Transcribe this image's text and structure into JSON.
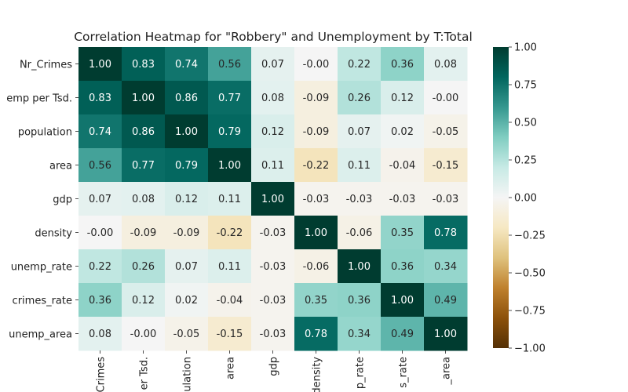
{
  "chart_data": {
    "type": "heatmap",
    "title": "Correlation Heatmap for \"Robbery\" and Unemployment by T:Total",
    "row_labels": [
      "Nr_Crimes",
      "emp per Tsd.",
      "population",
      "area",
      "gdp",
      "density",
      "unemp_rate",
      "crimes_rate",
      "unemp_area"
    ],
    "column_labels": [
      "Crimes",
      "er Tsd.",
      "ulation",
      "area",
      "gdp",
      "density",
      "p_rate",
      "s_rate",
      "_area"
    ],
    "values": [
      [
        1.0,
        0.83,
        0.74,
        0.56,
        0.07,
        -0.0,
        0.22,
        0.36,
        0.08
      ],
      [
        0.83,
        1.0,
        0.86,
        0.77,
        0.08,
        -0.09,
        0.26,
        0.12,
        -0.0
      ],
      [
        0.74,
        0.86,
        1.0,
        0.79,
        0.12,
        -0.09,
        0.07,
        0.02,
        -0.05
      ],
      [
        0.56,
        0.77,
        0.79,
        1.0,
        0.11,
        -0.22,
        0.11,
        -0.04,
        -0.15
      ],
      [
        0.07,
        0.08,
        0.12,
        0.11,
        1.0,
        -0.03,
        -0.03,
        -0.03,
        -0.03
      ],
      [
        -0.0,
        -0.09,
        -0.09,
        -0.22,
        -0.03,
        1.0,
        -0.06,
        0.35,
        0.78
      ],
      [
        0.22,
        0.26,
        0.07,
        0.11,
        -0.03,
        -0.06,
        1.0,
        0.36,
        0.34
      ],
      [
        0.36,
        0.12,
        0.02,
        -0.04,
        -0.03,
        0.35,
        0.36,
        1.0,
        0.49
      ],
      [
        0.08,
        -0.0,
        -0.05,
        -0.15,
        -0.03,
        0.78,
        0.34,
        0.49,
        1.0
      ]
    ],
    "value_format": "2 decimals",
    "colormap": "BrBG",
    "colorbar": {
      "range": [
        -1.0,
        1.0
      ],
      "ticks": [
        "1.00",
        "0.75",
        "0.50",
        "0.25",
        "0.00",
        "−0.25",
        "−0.50",
        "−0.75",
        "−1.00"
      ]
    }
  }
}
